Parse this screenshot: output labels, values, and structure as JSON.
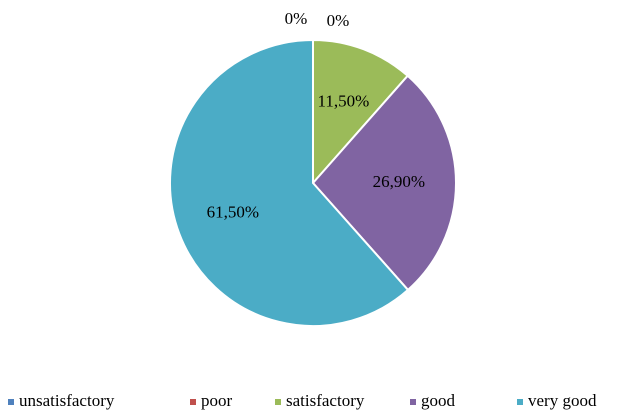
{
  "chart_data": {
    "type": "pie",
    "categories": [
      "unsatisfactory",
      "poor",
      "satisfactory",
      "good",
      "very good"
    ],
    "values": [
      0,
      0,
      11.5,
      26.9,
      61.5
    ],
    "value_labels": [
      "0%",
      "0%",
      "11,50%",
      "26,90%",
      "61,50%"
    ],
    "colors": [
      "#4f81bd",
      "#c0504d",
      "#9bbb59",
      "#8064a2",
      "#4bacc6"
    ],
    "legend": "bottom"
  }
}
